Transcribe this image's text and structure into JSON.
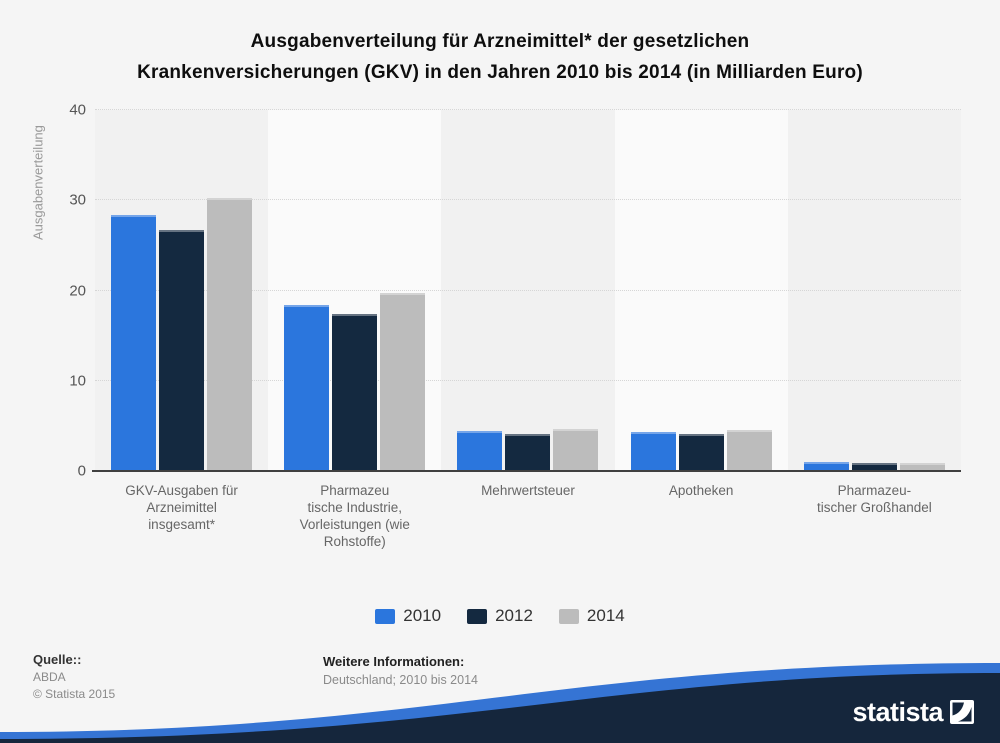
{
  "title": {
    "line1": "Ausgabenverteilung für Arzneimittel* der gesetzlichen",
    "line2": "Krankenversicherungen (GKV) in den Jahren 2010 bis 2014 (in Milliarden Euro)"
  },
  "chart_data": {
    "type": "bar",
    "title": "Ausgabenverteilung für Arzneimittel* der gesetzlichen Krankenversicherungen (GKV) in den Jahren 2010 bis 2014 (in Milliarden Euro)",
    "categories": [
      "GKV-Ausgaben für\nArzneimittel\ninsgesamt*",
      "Pharmazeu\ntische Industrie,\nVorleistungen (wie\nRohstoffe)",
      "Mehrwertsteuer",
      "Apotheken",
      "Pharmazeu-\ntischer Großhandel"
    ],
    "series": [
      {
        "name": "2010",
        "color": "#2b76dd",
        "values": [
          28.4,
          18.4,
          4.4,
          4.3,
          1.0
        ]
      },
      {
        "name": "2012",
        "color": "#142940",
        "values": [
          26.7,
          17.4,
          4.1,
          4.1,
          0.9
        ]
      },
      {
        "name": "2014",
        "color": "#bcbcbc",
        "values": [
          30.3,
          19.7,
          4.7,
          4.5,
          0.9
        ]
      }
    ],
    "xlabel": "",
    "ylabel": "Ausgabenverteilung",
    "yticks": [
      0,
      10,
      20,
      30,
      40
    ],
    "ylim": [
      0,
      40
    ],
    "grid": "horizontal-dotted",
    "legend_position": "bottom-center",
    "plot_band_colors": [
      "#f1f1f1",
      "#fafafa"
    ]
  },
  "footer": {
    "source_label": "Quelle::",
    "source_value": "ABDA",
    "copyright": "© Statista 2015",
    "info_label": "Weitere Informationen:",
    "info_value": "Deutschland; 2010 bis 2014"
  },
  "branding": {
    "logo_text": "statista",
    "wave_blue": "#3574d4",
    "wave_navy": "#15263c"
  }
}
